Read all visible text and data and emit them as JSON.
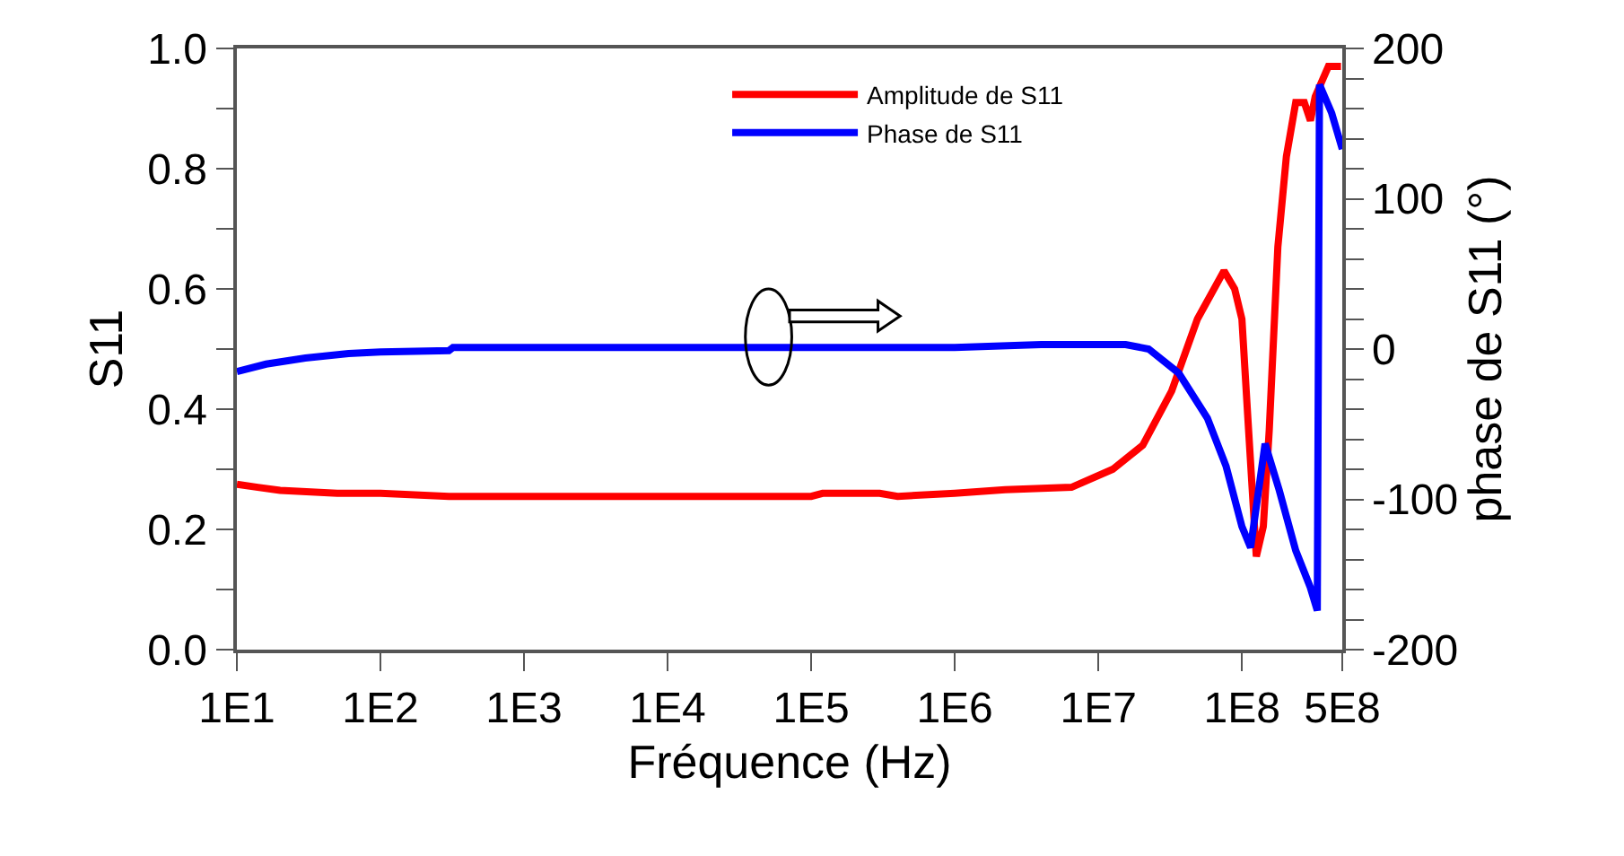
{
  "chart_data": {
    "type": "line",
    "xlabel": "Fréquence (Hz)",
    "ylabel": "S11",
    "y2label": "phase de S11 (°)",
    "log": "x",
    "legend": "top right",
    "line_style": "solid",
    "marker": "none",
    "xlim": [
      10,
      500000000
    ],
    "xticks": [
      {
        "value": 10,
        "label": "1E1"
      },
      {
        "value": 100,
        "label": "1E2"
      },
      {
        "value": 1000,
        "label": "1E3"
      },
      {
        "value": 10000,
        "label": "1E4"
      },
      {
        "value": 100000,
        "label": "1E5"
      },
      {
        "value": 1000000,
        "label": "1E6"
      },
      {
        "value": 10000000,
        "label": "1E7"
      },
      {
        "value": 100000000,
        "label": "1E8"
      },
      {
        "value": 500000000,
        "label": "5E8"
      }
    ],
    "ylim": [
      0,
      1
    ],
    "yticks": [
      {
        "value": 0,
        "label": "0.0"
      },
      {
        "value": 0.1,
        "label": null
      },
      0.2,
      {
        "value": 0.3,
        "label": null
      },
      0.4,
      {
        "value": 0.5,
        "label": null
      },
      0.6,
      {
        "value": 0.7,
        "label": null
      },
      0.8,
      {
        "value": 0.9,
        "label": null
      },
      {
        "value": 1,
        "label": "1.0"
      }
    ],
    "y2lim": [
      -200,
      200
    ],
    "y2ticks": [
      -200,
      {
        "value": -180,
        "label": null
      },
      {
        "value": -160,
        "label": null
      },
      {
        "value": -140,
        "label": null
      },
      {
        "value": -120,
        "label": null
      },
      -100,
      {
        "value": -80,
        "label": null
      },
      {
        "value": -60,
        "label": null
      },
      {
        "value": -40,
        "label": null
      },
      {
        "value": -20,
        "label": null
      },
      0,
      {
        "value": 20,
        "label": null
      },
      {
        "value": 40,
        "label": null
      },
      {
        "value": 60,
        "label": null
      },
      {
        "value": 80,
        "label": null
      },
      100,
      {
        "value": 120,
        "label": null
      },
      {
        "value": 140,
        "label": null
      },
      {
        "value": 160,
        "label": null
      },
      {
        "value": 180,
        "label": null
      },
      200
    ],
    "series": [
      {
        "name": "Amplitude de S11",
        "color": "#ff0000",
        "x": [
          10,
          14,
          20,
          50,
          100,
          300,
          1000,
          10000,
          100000,
          120000,
          300000,
          400000,
          1000000,
          2240000,
          6500000,
          12600000,
          20400000,
          32400000,
          49000000,
          75000000,
          89000000,
          100000000,
          110000000,
          126000000,
          141000000,
          155000000,
          178000000,
          204000000,
          237000000,
          272000000,
          300000000,
          324000000,
          400000000,
          490000000
        ],
        "values": [
          0.275,
          0.27,
          0.265,
          0.26,
          0.26,
          0.255,
          0.255,
          0.255,
          0.255,
          0.26,
          0.26,
          0.255,
          0.26,
          0.266,
          0.27,
          0.3,
          0.34,
          0.43,
          0.55,
          0.63,
          0.6,
          0.55,
          0.385,
          0.155,
          0.205,
          0.365,
          0.67,
          0.82,
          0.91,
          0.91,
          0.88,
          0.92,
          0.97,
          0.97
        ]
      },
      {
        "name": "Phase de S11",
        "color": "#0000ff",
        "axis": "y2",
        "x": [
          10,
          16,
          30,
          60,
          100,
          300,
          320,
          1000,
          10000,
          100000,
          1000000,
          4000000,
          15500000,
          22400000,
          36300000,
          57500000,
          77600000,
          100000000,
          115000000,
          145000000,
          182000000,
          237000000,
          298000000,
          335000000,
          347000000,
          422000000,
          500000000
        ],
        "values": [
          -15,
          -10,
          -6,
          -3,
          -2,
          -1,
          1,
          1,
          1,
          1,
          1,
          3,
          3,
          0,
          -16,
          -46,
          -78,
          -118,
          -132,
          -63,
          -94,
          -134,
          -158,
          -174,
          176,
          157,
          133
        ]
      }
    ]
  }
}
